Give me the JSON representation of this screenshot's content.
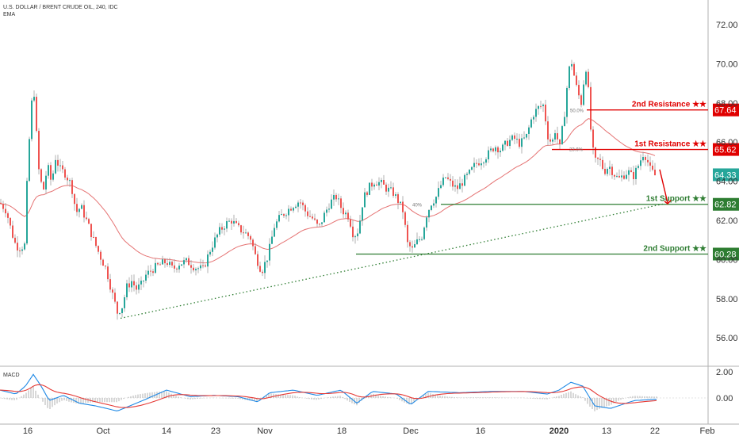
{
  "header": {
    "symbol": "U.S. DOLLAR / BRENT CRUDE OIL, 240, IDC",
    "indicator": "EMA"
  },
  "colors": {
    "up": "#26a69a",
    "down": "#ef5350",
    "ema": "#e57373",
    "resistance": "#e00000",
    "support": "#2e7d32",
    "trendline": "#2e7d32",
    "current": "#26a69a",
    "macd": "#1e88e5",
    "signal": "#e53935"
  },
  "chart_data": [
    {
      "type": "candlestick",
      "title": "U.S. DOLLAR / BRENT CRUDE OIL, 240, IDC",
      "y_ticks": [
        "72.00",
        "70.00",
        "68.00",
        "66.00",
        "64.00",
        "62.00",
        "60.00",
        "58.00",
        "56.00"
      ],
      "ylim": [
        55,
        73
      ],
      "x_ticks": [
        "16",
        "Oct",
        "14",
        "23",
        "Nov",
        "18",
        "Dec",
        "16",
        "2020",
        "13",
        "22",
        "Feb"
      ],
      "close_series": [
        [
          0,
          62.9
        ],
        [
          8,
          62.5
        ],
        [
          14,
          61.5
        ],
        [
          20,
          60.7
        ],
        [
          26,
          60.6
        ],
        [
          33,
          60.8
        ],
        [
          35,
          66.8
        ],
        [
          38,
          65.8
        ],
        [
          41,
          69.1
        ],
        [
          44,
          68.2
        ],
        [
          47,
          65.5
        ],
        [
          50,
          64.1
        ],
        [
          55,
          63.6
        ],
        [
          60,
          64.8
        ],
        [
          65,
          63.9
        ],
        [
          70,
          65.2
        ],
        [
          76,
          64.6
        ],
        [
          82,
          64.4
        ],
        [
          90,
          63.8
        ],
        [
          96,
          62.4
        ],
        [
          102,
          62.7
        ],
        [
          110,
          61.9
        ],
        [
          118,
          61.0
        ],
        [
          126,
          60.2
        ],
        [
          134,
          59.5
        ],
        [
          142,
          58.2
        ],
        [
          148,
          57.3
        ],
        [
          154,
          57.6
        ],
        [
          160,
          58.6
        ],
        [
          166,
          58.9
        ],
        [
          172,
          58.5
        ],
        [
          178,
          58.7
        ],
        [
          184,
          59.2
        ],
        [
          192,
          59.5
        ],
        [
          200,
          59.7
        ],
        [
          210,
          59.9
        ],
        [
          218,
          59.5
        ],
        [
          226,
          59.8
        ],
        [
          236,
          59.9
        ],
        [
          246,
          59.6
        ],
        [
          256,
          59.5
        ],
        [
          266,
          60.6
        ],
        [
          276,
          61.4
        ],
        [
          284,
          61.8
        ],
        [
          292,
          62.0
        ],
        [
          300,
          61.6
        ],
        [
          308,
          61.4
        ],
        [
          316,
          61.1
        ],
        [
          322,
          60.2
        ],
        [
          330,
          59.4
        ],
        [
          338,
          60.2
        ],
        [
          346,
          61.7
        ],
        [
          354,
          62.2
        ],
        [
          362,
          62.5
        ],
        [
          370,
          62.8
        ],
        [
          378,
          63.0
        ],
        [
          386,
          62.4
        ],
        [
          394,
          62.1
        ],
        [
          402,
          61.6
        ],
        [
          408,
          62.2
        ],
        [
          416,
          62.9
        ],
        [
          424,
          63.2
        ],
        [
          432,
          62.5
        ],
        [
          440,
          62.2
        ],
        [
          446,
          61.2
        ],
        [
          452,
          61.5
        ],
        [
          458,
          63.1
        ],
        [
          464,
          63.6
        ],
        [
          472,
          64.0
        ],
        [
          480,
          63.9
        ],
        [
          488,
          63.6
        ],
        [
          496,
          63.4
        ],
        [
          502,
          63.0
        ],
        [
          508,
          62.5
        ],
        [
          514,
          60.8
        ],
        [
          520,
          60.5
        ],
        [
          526,
          60.9
        ],
        [
          532,
          61.2
        ],
        [
          538,
          62.3
        ],
        [
          544,
          62.9
        ],
        [
          550,
          63.2
        ],
        [
          556,
          63.8
        ],
        [
          562,
          64.2
        ],
        [
          568,
          63.9
        ],
        [
          576,
          63.6
        ],
        [
          584,
          64.0
        ],
        [
          592,
          64.4
        ],
        [
          600,
          64.9
        ],
        [
          608,
          65.1
        ],
        [
          616,
          65.4
        ],
        [
          624,
          65.8
        ],
        [
          632,
          65.6
        ],
        [
          640,
          66.0
        ],
        [
          648,
          66.2
        ],
        [
          656,
          65.9
        ],
        [
          664,
          66.3
        ],
        [
          672,
          67.4
        ],
        [
          680,
          67.8
        ],
        [
          686,
          67.9
        ],
        [
          690,
          66.4
        ],
        [
          696,
          65.9
        ],
        [
          700,
          66.6
        ],
        [
          706,
          65.7
        ],
        [
          712,
          67.5
        ],
        [
          716,
          69.2
        ],
        [
          720,
          70.3
        ],
        [
          724,
          69.4
        ],
        [
          728,
          68.6
        ],
        [
          734,
          67.9
        ],
        [
          738,
          70.2
        ],
        [
          742,
          68.6
        ],
        [
          746,
          66.0
        ],
        [
          750,
          65.0
        ],
        [
          756,
          65.1
        ],
        [
          762,
          64.5
        ],
        [
          768,
          64.8
        ],
        [
          774,
          64.4
        ],
        [
          780,
          64.1
        ],
        [
          786,
          64.3
        ],
        [
          792,
          64.5
        ],
        [
          798,
          64.2
        ],
        [
          804,
          64.7
        ],
        [
          808,
          65.1
        ],
        [
          812,
          65.5
        ],
        [
          816,
          65.1
        ],
        [
          820,
          64.6
        ],
        [
          826,
          64.3
        ]
      ],
      "series": [
        {
          "name": "EMA"
        }
      ],
      "levels": [
        {
          "label": "2nd Resistance ★★",
          "value": 67.64,
          "price_tag": "67.64",
          "kind": "resistance"
        },
        {
          "label": "1st Resistance ★★",
          "value": 65.62,
          "price_tag": "65.62",
          "kind": "resistance"
        },
        {
          "label": "1st Support ★★",
          "value": 62.82,
          "price_tag": "62.82",
          "kind": "support"
        },
        {
          "label": "2nd Support ★★",
          "value": 60.28,
          "price_tag": "60.28",
          "kind": "support"
        }
      ],
      "current_price": "64.33",
      "annotations": {
        "fib_top": "50.0%",
        "fib_bottom": "23.6%",
        "dec_pct": "40%"
      }
    },
    {
      "type": "line",
      "title": "MACD",
      "y_ticks": [
        "2.00",
        "0.00"
      ],
      "ylim": [
        -1.4,
        2.0
      ],
      "series": [
        {
          "name": "MACD"
        },
        {
          "name": "Signal"
        }
      ]
    }
  ]
}
